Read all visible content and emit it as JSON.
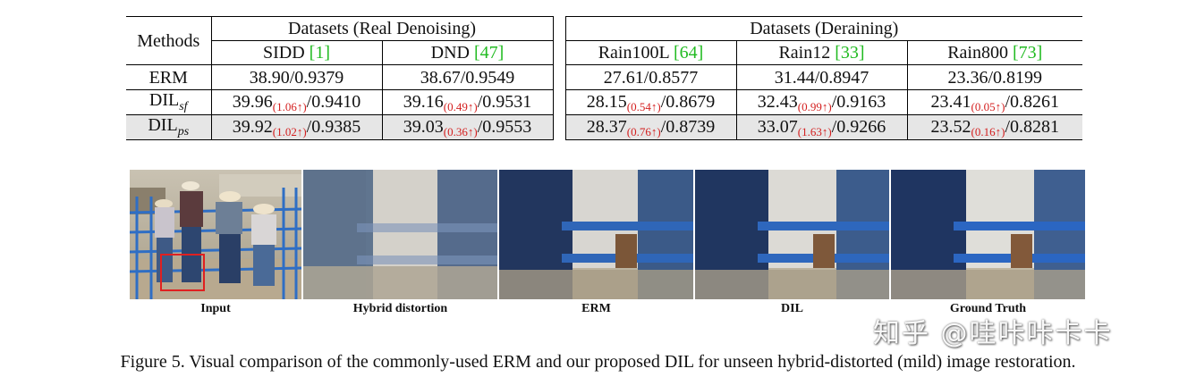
{
  "table": {
    "methods_header": "Methods",
    "group_denoise": "Datasets (Real Denoising)",
    "group_derain": "Datasets (Deraining)",
    "columns": [
      {
        "name": "SIDD",
        "ref": "[1]"
      },
      {
        "name": "DND",
        "ref": "[47]"
      },
      {
        "name": "Rain100L",
        "ref": "[64]"
      },
      {
        "name": "Rain12",
        "ref": "[33]"
      },
      {
        "name": "Rain800",
        "ref": "[73]"
      }
    ],
    "rows": [
      {
        "method": "ERM",
        "sub": "",
        "cells": [
          {
            "v1": "38.90",
            "d": "",
            "v2": "/0.9379"
          },
          {
            "v1": "38.67",
            "d": "",
            "v2": "/0.9549"
          },
          {
            "v1": "27.61",
            "d": "",
            "v2": "/0.8577"
          },
          {
            "v1": "31.44",
            "d": "",
            "v2": "/0.8947"
          },
          {
            "v1": "23.36",
            "d": "",
            "v2": "/0.8199"
          }
        ]
      },
      {
        "method": "DIL",
        "sub": "sf",
        "cells": [
          {
            "v1": "39.96",
            "d": "(1.06↑)",
            "v2": "/0.9410"
          },
          {
            "v1": "39.16",
            "d": "(0.49↑)",
            "v2": "/0.9531"
          },
          {
            "v1": "28.15",
            "d": "(0.54↑)",
            "v2": "/0.8679"
          },
          {
            "v1": "32.43",
            "d": "(0.99↑)",
            "v2": "/0.9163"
          },
          {
            "v1": "23.41",
            "d": "(0.05↑)",
            "v2": "/0.8261"
          }
        ]
      },
      {
        "method": "DIL",
        "sub": "ps",
        "cells": [
          {
            "v1": "39.92",
            "d": "(1.02↑)",
            "v2": "/0.9385"
          },
          {
            "v1": "39.03",
            "d": "(0.36↑)",
            "v2": "/0.9553"
          },
          {
            "v1": "28.37",
            "d": "(0.76↑)",
            "v2": "/0.8739"
          },
          {
            "v1": "33.07",
            "d": "(1.63↑)",
            "v2": "/0.9266"
          },
          {
            "v1": "23.52",
            "d": "(0.16↑)",
            "v2": "/0.8281"
          }
        ]
      }
    ]
  },
  "figure": {
    "panels": [
      "Input",
      "Hybrid distortion",
      "ERM",
      "DIL",
      "Ground Truth"
    ],
    "caption": "Figure 5. Visual comparison of the commonly-used ERM and our proposed DIL for unseen hybrid-distorted (mild) image restoration.",
    "watermark": "知乎 @哇咔咔卡卡"
  },
  "colors": {
    "citation": "#22bb22",
    "improvement": "#d42020",
    "shade": "#e6e6e6"
  }
}
